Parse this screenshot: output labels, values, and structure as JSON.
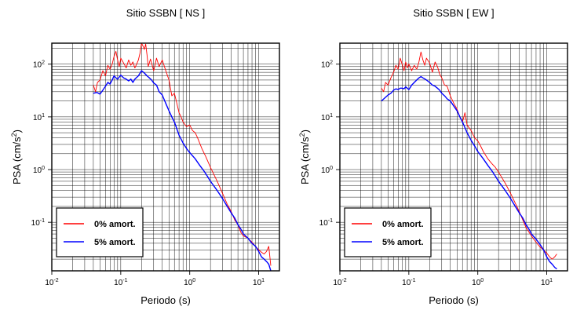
{
  "chart_data": [
    {
      "type": "line",
      "title": "Sitio SSBN [ NS ]",
      "xlabel": "Periodo (s)",
      "ylabel_main": "PSA (cm/s",
      "ylabel_sup": "2",
      "ylabel_tail": ")",
      "xscale": "log",
      "yscale": "log",
      "xlim": [
        0.01,
        20
      ],
      "ylim": [
        0.012,
        250
      ],
      "grid": true,
      "legend_position": "bottom-left",
      "xticks": [
        {
          "value": 0.01,
          "base": "10",
          "exp": "-2"
        },
        {
          "value": 0.1,
          "base": "10",
          "exp": "-1"
        },
        {
          "value": 1,
          "base": "10",
          "exp": "0"
        },
        {
          "value": 10,
          "base": "10",
          "exp": "1"
        }
      ],
      "yticks": [
        {
          "value": 0.1,
          "base": "10",
          "exp": "-1"
        },
        {
          "value": 1,
          "base": "10",
          "exp": "0"
        },
        {
          "value": 10,
          "base": "10",
          "exp": "1"
        },
        {
          "value": 100,
          "base": "10",
          "exp": "2"
        }
      ],
      "series": [
        {
          "name": "0% amort.",
          "color": "#ff0000",
          "x": [
            0.04,
            0.043,
            0.046,
            0.05,
            0.055,
            0.06,
            0.065,
            0.07,
            0.075,
            0.08,
            0.085,
            0.09,
            0.095,
            0.1,
            0.11,
            0.12,
            0.13,
            0.14,
            0.15,
            0.16,
            0.17,
            0.18,
            0.19,
            0.2,
            0.21,
            0.22,
            0.23,
            0.24,
            0.25,
            0.27,
            0.3,
            0.33,
            0.36,
            0.4,
            0.45,
            0.5,
            0.55,
            0.6,
            0.65,
            0.7,
            0.75,
            0.8,
            0.9,
            1.0,
            1.1,
            1.2,
            1.3,
            1.5,
            1.7,
            2.0,
            2.5,
            3.0,
            3.5,
            4.0,
            4.5,
            5.0,
            5.5,
            6.0,
            7.0,
            8.0,
            9.0,
            10.0,
            11.0,
            12.0,
            13.0,
            14.0,
            15.0
          ],
          "y": [
            40,
            30,
            45,
            50,
            75,
            60,
            95,
            80,
            100,
            140,
            175,
            120,
            90,
            130,
            105,
            85,
            120,
            95,
            110,
            85,
            100,
            120,
            160,
            250,
            220,
            190,
            240,
            150,
            90,
            125,
            75,
            130,
            90,
            120,
            75,
            50,
            25,
            28,
            18,
            12,
            10,
            8,
            6.5,
            7,
            5.5,
            5,
            4,
            2.5,
            1.8,
            1.1,
            0.6,
            0.35,
            0.22,
            0.16,
            0.11,
            0.09,
            0.065,
            0.055,
            0.05,
            0.042,
            0.035,
            0.03,
            0.027,
            0.025,
            0.028,
            0.035,
            0.015
          ]
        },
        {
          "name": "5% amort.",
          "color": "#0000ff",
          "x": [
            0.04,
            0.045,
            0.05,
            0.055,
            0.06,
            0.065,
            0.07,
            0.075,
            0.08,
            0.085,
            0.09,
            0.1,
            0.11,
            0.12,
            0.13,
            0.14,
            0.15,
            0.16,
            0.18,
            0.2,
            0.22,
            0.24,
            0.26,
            0.28,
            0.3,
            0.33,
            0.36,
            0.4,
            0.45,
            0.5,
            0.55,
            0.6,
            0.7,
            0.8,
            0.9,
            1.0,
            1.2,
            1.4,
            1.6,
            1.8,
            2.0,
            2.5,
            3.0,
            3.5,
            4.0,
            4.5,
            5.0,
            5.5,
            6.0,
            7.0,
            8.0,
            9.0,
            10.0,
            11.0,
            12.0,
            13.0,
            14.0,
            15.0
          ],
          "y": [
            28,
            29,
            27,
            32,
            38,
            45,
            42,
            50,
            60,
            55,
            52,
            62,
            55,
            52,
            48,
            52,
            45,
            52,
            60,
            75,
            68,
            60,
            55,
            50,
            44,
            40,
            30,
            26,
            18,
            13,
            10,
            8,
            4.5,
            3.2,
            2.5,
            2.1,
            1.6,
            1.2,
            0.95,
            0.75,
            0.6,
            0.4,
            0.28,
            0.2,
            0.15,
            0.12,
            0.09,
            0.075,
            0.06,
            0.05,
            0.04,
            0.035,
            0.028,
            0.022,
            0.02,
            0.018,
            0.016,
            0.012
          ]
        }
      ]
    },
    {
      "type": "line",
      "title": "Sitio SSBN [ EW ]",
      "xlabel": "Periodo (s)",
      "ylabel_main": "PSA (cm/s",
      "ylabel_sup": "2",
      "ylabel_tail": ")",
      "xscale": "log",
      "yscale": "log",
      "xlim": [
        0.01,
        20
      ],
      "ylim": [
        0.012,
        250
      ],
      "grid": true,
      "legend_position": "bottom-left",
      "xticks": [
        {
          "value": 0.01,
          "base": "10",
          "exp": "-2"
        },
        {
          "value": 0.1,
          "base": "10",
          "exp": "-1"
        },
        {
          "value": 1,
          "base": "10",
          "exp": "0"
        },
        {
          "value": 10,
          "base": "10",
          "exp": "1"
        }
      ],
      "yticks": [
        {
          "value": 0.1,
          "base": "10",
          "exp": "-1"
        },
        {
          "value": 1,
          "base": "10",
          "exp": "0"
        },
        {
          "value": 10,
          "base": "10",
          "exp": "1"
        },
        {
          "value": 100,
          "base": "10",
          "exp": "2"
        }
      ],
      "series": [
        {
          "name": "0% amort.",
          "color": "#ff0000",
          "x": [
            0.04,
            0.043,
            0.046,
            0.05,
            0.055,
            0.06,
            0.065,
            0.07,
            0.075,
            0.08,
            0.085,
            0.09,
            0.095,
            0.1,
            0.11,
            0.12,
            0.13,
            0.14,
            0.15,
            0.16,
            0.17,
            0.18,
            0.2,
            0.22,
            0.24,
            0.26,
            0.28,
            0.3,
            0.33,
            0.36,
            0.4,
            0.45,
            0.5,
            0.55,
            0.6,
            0.65,
            0.7,
            0.8,
            0.9,
            1.0,
            1.1,
            1.2,
            1.4,
            1.6,
            1.8,
            2.0,
            2.5,
            3.0,
            3.5,
            4.0,
            4.5,
            5.0,
            6.0,
            7.0,
            8.0,
            9.0,
            10.0,
            11.0,
            12.0,
            13.0,
            14.0
          ],
          "y": [
            35,
            30,
            45,
            40,
            55,
            70,
            95,
            80,
            130,
            100,
            75,
            110,
            85,
            100,
            75,
            95,
            80,
            110,
            170,
            120,
            95,
            130,
            105,
            70,
            110,
            90,
            65,
            55,
            40,
            38,
            25,
            18,
            14,
            10,
            8,
            12,
            7,
            5.5,
            4,
            3.5,
            2.8,
            2.2,
            1.6,
            1.3,
            1.1,
            0.9,
            0.55,
            0.35,
            0.23,
            0.16,
            0.11,
            0.08,
            0.055,
            0.042,
            0.034,
            0.03,
            0.026,
            0.022,
            0.02,
            0.022,
            0.025
          ]
        },
        {
          "name": "5% amort.",
          "color": "#0000ff",
          "x": [
            0.04,
            0.045,
            0.05,
            0.055,
            0.06,
            0.065,
            0.07,
            0.075,
            0.08,
            0.085,
            0.09,
            0.1,
            0.11,
            0.12,
            0.13,
            0.14,
            0.15,
            0.16,
            0.18,
            0.2,
            0.22,
            0.24,
            0.26,
            0.28,
            0.3,
            0.33,
            0.36,
            0.4,
            0.45,
            0.5,
            0.55,
            0.6,
            0.7,
            0.8,
            0.9,
            1.0,
            1.2,
            1.4,
            1.6,
            1.8,
            2.0,
            2.5,
            3.0,
            3.5,
            4.0,
            4.5,
            5.0,
            5.5,
            6.0,
            7.0,
            8.0,
            9.0,
            10.0,
            11.0,
            12.0,
            13.0,
            14.0
          ],
          "y": [
            20,
            23,
            26,
            28,
            32,
            34,
            33,
            35,
            35,
            34,
            37,
            33,
            40,
            45,
            50,
            55,
            58,
            55,
            50,
            45,
            40,
            38,
            35,
            32,
            28,
            25,
            22,
            20,
            16,
            13,
            10,
            8,
            5,
            3.6,
            2.8,
            2.2,
            1.6,
            1.2,
            0.95,
            0.75,
            0.6,
            0.4,
            0.28,
            0.2,
            0.15,
            0.12,
            0.09,
            0.075,
            0.06,
            0.048,
            0.038,
            0.03,
            0.022,
            0.018,
            0.016,
            0.014,
            0.013
          ]
        }
      ]
    }
  ]
}
